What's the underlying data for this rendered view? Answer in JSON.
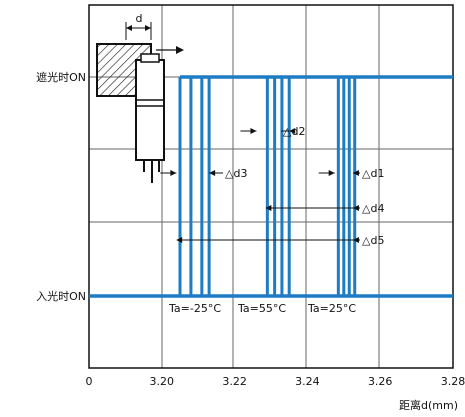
{
  "chart_data": {
    "type": "line",
    "xlabel": "距离d(mm)",
    "x_ticks": [
      "0",
      "3.20",
      "3.22",
      "3.24",
      "3.26",
      "3.28"
    ],
    "x_tick_values": [
      null,
      3.2,
      3.22,
      3.24,
      3.26,
      3.28
    ],
    "xlim": [
      3.18,
      3.28
    ],
    "y_levels": [
      "遮光时ON",
      "入光时ON"
    ],
    "grid": true,
    "colors": {
      "series": "#1e7cc4",
      "grid": "#666666",
      "axis": "#111111"
    },
    "groups": [
      {
        "label": "Ta=-25°C",
        "edges": [
          3.205,
          3.208,
          3.211,
          3.213
        ]
      },
      {
        "label": "Ta=55°C",
        "edges": [
          3.229,
          3.231,
          3.233,
          3.235
        ]
      },
      {
        "label": "Ta=25°C",
        "edges": [
          3.2485,
          3.25,
          3.2515,
          3.253
        ]
      }
    ],
    "annotations": [
      {
        "label": "△d1",
        "from": 3.2475,
        "to": 3.2525
      },
      {
        "label": "△d2",
        "from": 3.226,
        "to": 3.235
      },
      {
        "label": "△d3",
        "from": 3.204,
        "to": 3.213
      },
      {
        "label": "△d4",
        "from": 3.229,
        "to": 3.2525
      },
      {
        "label": "△d5",
        "from": 3.2045,
        "to": 3.2525
      }
    ],
    "diagram_label": "d"
  }
}
